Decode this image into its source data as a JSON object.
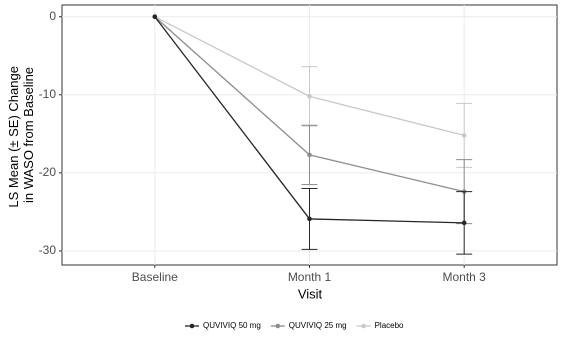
{
  "chart_data": {
    "type": "line",
    "x_label": "Visit",
    "y_label": [
      "LS Mean (± SE) Change",
      "in WASO from Baseline"
    ],
    "categories": [
      "Baseline",
      "Month 1",
      "Month 3"
    ],
    "series": [
      {
        "name": "QUVIVIQ 50 mg",
        "color": "#262626",
        "values": [
          0,
          -25.9,
          -26.4
        ],
        "errors": [
          null,
          3.9,
          4.0
        ]
      },
      {
        "name": "QUVIVIQ 25 mg",
        "color": "#8c8c8c",
        "values": [
          0,
          -17.7,
          -22.4
        ],
        "errors": [
          null,
          3.8,
          4.1
        ]
      },
      {
        "name": "Placebo",
        "color": "#c8c8c8",
        "values": [
          0,
          -10.2,
          -15.2
        ],
        "errors": [
          null,
          3.8,
          4.1
        ]
      }
    ],
    "ylim": [
      -31.8,
      1.5
    ],
    "yticks": [
      0,
      -10,
      -20,
      -30
    ],
    "grid": true,
    "legend": "bottom"
  }
}
